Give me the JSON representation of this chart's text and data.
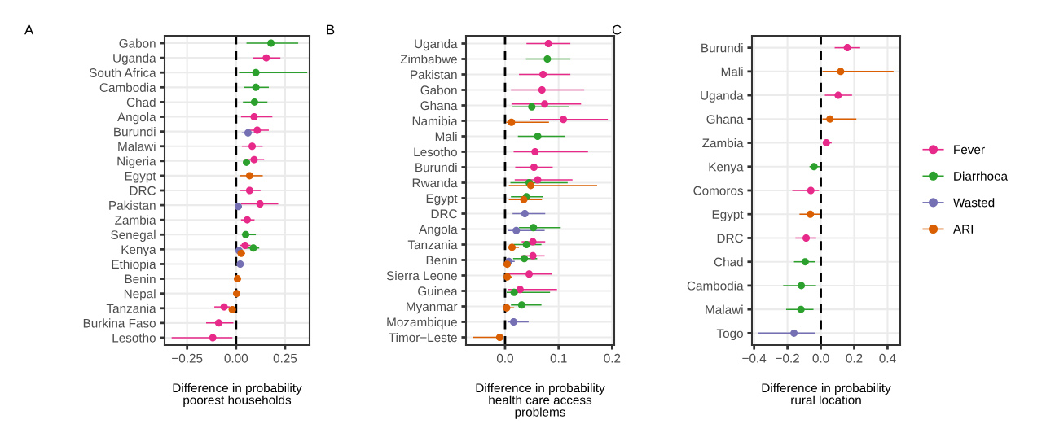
{
  "chart_data": [
    {
      "type": "scatter",
      "title": "A",
      "orientation": "horizontal",
      "xlabel": "Difference in probability\npoorest households",
      "categories": [
        "Gabon",
        "Uganda",
        "South Africa",
        "Cambodia",
        "Chad",
        "Angola",
        "Burundi",
        "Malawi",
        "Nigeria",
        "Egypt",
        "DRC",
        "Pakistan",
        "Zambia",
        "Senegal",
        "Kenya",
        "Ethiopia",
        "Benin",
        "Nepal",
        "Tanzania",
        "Burkina Faso",
        "Lesotho"
      ],
      "xlim": [
        -0.365,
        0.375
      ],
      "xticks": [
        {
          "value": -0.25,
          "label": "−0.25"
        },
        {
          "value": 0,
          "label": "0.00"
        },
        {
          "value": 0.25,
          "label": "0.25"
        }
      ],
      "grid": true,
      "legend": false,
      "marker": "circle",
      "ref_lines": [
        {
          "axis": "x",
          "value": 0,
          "label": null,
          "color": "#000000",
          "line_style": "dashed"
        }
      ],
      "series": [
        {
          "color": "#e7298a",
          "values": [
            null,
            0.154,
            null,
            null,
            null,
            0.092,
            0.108,
            0.082,
            0.092,
            null,
            0.069,
            0.122,
            0.057,
            null,
            0.046,
            null,
            null,
            null,
            -0.061,
            -0.089,
            -0.119
          ],
          "errors": [
            null,
            [
              0.085,
              0.226
            ],
            null,
            null,
            null,
            [
              0.025,
              0.185
            ],
            [
              0.053,
              0.167
            ],
            [
              0.029,
              0.136
            ],
            [
              0.043,
              0.143
            ],
            null,
            [
              0.018,
              0.125
            ],
            [
              0.025,
              0.215
            ],
            [
              0.025,
              0.094
            ],
            null,
            [
              0.018,
              0.074
            ],
            null,
            null,
            null,
            [
              -0.111,
              -0.031
            ],
            [
              -0.153,
              -0.014
            ],
            [
              -0.329,
              -0.019
            ]
          ]
        },
        {
          "color": "#2ca02c",
          "values": [
            0.178,
            null,
            0.101,
            0.101,
            0.094,
            null,
            null,
            null,
            0.053,
            null,
            null,
            null,
            null,
            0.049,
            0.088,
            null,
            null,
            null,
            null,
            null,
            null
          ],
          "errors": [
            [
              0.053,
              0.317
            ],
            null,
            [
              0.015,
              0.363
            ],
            [
              0.039,
              0.167
            ],
            [
              0.035,
              0.16
            ],
            null,
            null,
            null,
            [
              0.04,
              0.067
            ],
            null,
            null,
            null,
            null,
            [
              0.029,
              0.101
            ],
            [
              0.046,
              0.118
            ],
            null,
            null,
            null,
            null,
            null,
            null
          ]
        },
        {
          "color": "#7570b3",
          "values": [
            null,
            null,
            null,
            null,
            null,
            null,
            0.061,
            null,
            null,
            null,
            null,
            0.011,
            null,
            null,
            0.015,
            0.021,
            null,
            null,
            null,
            null,
            null
          ],
          "errors": [
            null,
            null,
            null,
            null,
            null,
            null,
            [
              0.029,
              0.111
            ],
            null,
            null,
            null,
            null,
            [
              0.0,
              0.03
            ],
            null,
            null,
            [
              0.004,
              0.032
            ],
            [
              0.011,
              0.032
            ],
            null,
            null,
            null,
            null,
            null
          ]
        },
        {
          "color": "#d95f02",
          "values": [
            null,
            null,
            null,
            null,
            null,
            null,
            null,
            null,
            null,
            0.069,
            null,
            null,
            null,
            null,
            0.026,
            null,
            0.007,
            0.003,
            -0.019,
            null,
            null
          ],
          "errors": [
            null,
            null,
            null,
            null,
            null,
            null,
            null,
            null,
            null,
            [
              0.018,
              0.136
            ],
            null,
            null,
            null,
            null,
            [
              0.011,
              0.046
            ],
            null,
            [
              -0.003,
              0.018
            ],
            [
              -0.006,
              0.011
            ],
            [
              -0.038,
              -0.003
            ],
            null,
            null
          ]
        }
      ]
    },
    {
      "type": "scatter",
      "title": "B",
      "orientation": "horizontal",
      "xlabel": "Difference in probability\nhealth care access\nproblems",
      "categories": [
        "Uganda",
        "Zimbabwe",
        "Pakistan",
        "Gabon",
        "Ghana",
        "Namibia",
        "Mali",
        "Lesotho",
        "Burundi",
        "Rwanda",
        "Egypt",
        "DRC",
        "Angola",
        "Tanzania",
        "Benin",
        "Sierra Leone",
        "Guinea",
        "Myanmar",
        "Mozambique",
        "Timor−Leste"
      ],
      "xlim": [
        -0.073,
        0.204
      ],
      "xticks": [
        {
          "value": 0,
          "label": "0.0"
        },
        {
          "value": 0.1,
          "label": "0.1"
        },
        {
          "value": 0.2,
          "label": "0.2"
        }
      ],
      "grid": true,
      "legend": false,
      "marker": "circle",
      "ref_lines": [
        {
          "axis": "x",
          "value": 0,
          "label": null,
          "color": "#000000",
          "line_style": "dashed"
        }
      ],
      "series": [
        {
          "color": "#e7298a",
          "values": [
            0.081,
            null,
            0.071,
            0.069,
            0.074,
            0.109,
            null,
            0.056,
            0.054,
            0.061,
            null,
            null,
            null,
            0.052,
            0.052,
            0.045,
            0.028,
            null,
            null,
            null
          ],
          "errors": [
            [
              0.04,
              0.122
            ],
            null,
            [
              0.026,
              0.122
            ],
            [
              0.011,
              0.148
            ],
            [
              0.012,
              0.142
            ],
            [
              0.046,
              0.192
            ],
            null,
            [
              0.016,
              0.155
            ],
            [
              0.019,
              0.089
            ],
            [
              0.018,
              0.126
            ],
            null,
            null,
            null,
            [
              0.031,
              0.075
            ],
            [
              0.031,
              0.074
            ],
            [
              0.006,
              0.087
            ],
            [
              0.006,
              0.097
            ],
            null,
            null,
            null
          ]
        },
        {
          "color": "#2ca02c",
          "values": [
            null,
            0.079,
            null,
            null,
            0.05,
            null,
            0.061,
            null,
            null,
            0.045,
            0.04,
            null,
            0.053,
            0.04,
            0.036,
            null,
            0.017,
            0.031,
            null,
            null
          ],
          "errors": [
            null,
            [
              0.039,
              0.122
            ],
            null,
            null,
            [
              0.014,
              0.119
            ],
            null,
            [
              0.024,
              0.112
            ],
            null,
            null,
            [
              0.01,
              0.117
            ],
            [
              0.011,
              0.071
            ],
            null,
            [
              0.026,
              0.104
            ],
            [
              0.016,
              0.068
            ],
            [
              0.015,
              0.06
            ],
            null,
            [
              0.003,
              0.084
            ],
            [
              0.011,
              0.068
            ],
            null,
            null
          ]
        },
        {
          "color": "#7570b3",
          "values": [
            null,
            null,
            null,
            null,
            null,
            null,
            null,
            null,
            null,
            null,
            null,
            0.037,
            0.021,
            null,
            0.007,
            null,
            null,
            null,
            0.016,
            null
          ],
          "errors": [
            null,
            null,
            null,
            null,
            null,
            null,
            null,
            null,
            null,
            null,
            null,
            [
              0.014,
              0.075
            ],
            [
              0.005,
              0.074
            ],
            null,
            [
              0.001,
              0.018
            ],
            null,
            null,
            null,
            [
              0.006,
              0.044
            ],
            null
          ]
        },
        {
          "color": "#d95f02",
          "values": [
            null,
            null,
            null,
            null,
            null,
            0.012,
            null,
            null,
            null,
            0.048,
            0.035,
            null,
            null,
            0.013,
            0.004,
            0.004,
            null,
            0.003,
            null,
            -0.01
          ],
          "errors": [
            null,
            null,
            null,
            null,
            null,
            [
              0.002,
              0.082
            ],
            null,
            null,
            null,
            [
              0.007,
              0.172
            ],
            [
              0.007,
              0.069
            ],
            null,
            null,
            [
              0.006,
              0.026
            ],
            [
              -0.002,
              0.011
            ],
            [
              0.0,
              0.013
            ],
            null,
            [
              0.0,
              0.017
            ],
            null,
            [
              -0.06,
              -0.004
            ]
          ]
        }
      ]
    },
    {
      "type": "scatter",
      "title": "C",
      "orientation": "horizontal",
      "xlabel": "Difference in probability\nrural location",
      "categories": [
        "Burundi",
        "Mali",
        "Uganda",
        "Ghana",
        "Zambia",
        "Kenya",
        "Comoros",
        "Egypt",
        "DRC",
        "Chad",
        "Cambodia",
        "Malawi",
        "Togo"
      ],
      "xlim": [
        -0.413,
        0.476
      ],
      "xticks": [
        {
          "value": -0.4,
          "label": "−0.4"
        },
        {
          "value": -0.2,
          "label": "−0.2"
        },
        {
          "value": 0,
          "label": "0.0"
        },
        {
          "value": 0.2,
          "label": "0.2"
        },
        {
          "value": 0.4,
          "label": "0.4"
        }
      ],
      "grid": true,
      "legend": "right",
      "marker": "circle",
      "ref_lines": [
        {
          "axis": "x",
          "value": 0,
          "label": null,
          "color": "#000000",
          "line_style": "dashed"
        }
      ],
      "series": [
        {
          "name": "Fever",
          "color": "#e7298a",
          "values": [
            0.159,
            null,
            0.104,
            null,
            0.033,
            null,
            -0.06,
            null,
            -0.088,
            null,
            null,
            null,
            null
          ],
          "errors": [
            [
              0.083,
              0.236
            ],
            null,
            [
              0.024,
              0.187
            ],
            null,
            [
              0.013,
              0.065
            ],
            null,
            [
              -0.171,
              -0.011
            ],
            null,
            [
              -0.153,
              -0.028
            ],
            null,
            null,
            null,
            null
          ]
        },
        {
          "name": "Diarrhoea",
          "color": "#2ca02c",
          "values": [
            null,
            null,
            null,
            null,
            null,
            -0.041,
            null,
            null,
            null,
            -0.094,
            -0.117,
            -0.119,
            null
          ],
          "errors": [
            null,
            null,
            null,
            null,
            null,
            [
              -0.068,
              -0.008
            ],
            null,
            null,
            null,
            [
              -0.161,
              -0.036
            ],
            [
              -0.226,
              -0.029
            ],
            [
              -0.208,
              -0.044
            ],
            null
          ]
        },
        {
          "name": "Wasted",
          "color": "#7570b3",
          "values": [
            null,
            null,
            null,
            null,
            null,
            null,
            null,
            null,
            null,
            null,
            null,
            null,
            -0.161
          ],
          "errors": [
            null,
            null,
            null,
            null,
            null,
            null,
            null,
            null,
            null,
            null,
            null,
            null,
            [
              -0.374,
              -0.033
            ]
          ]
        },
        {
          "name": "ARI",
          "color": "#d95f02",
          "values": [
            null,
            0.119,
            null,
            0.054,
            null,
            null,
            null,
            -0.063,
            null,
            null,
            null,
            null,
            null
          ],
          "errors": [
            null,
            [
              0.01,
              0.436
            ],
            null,
            [
              0.01,
              0.213
            ],
            null,
            null,
            null,
            [
              -0.128,
              -0.007
            ],
            null,
            null,
            null,
            null,
            null
          ]
        }
      ]
    }
  ]
}
